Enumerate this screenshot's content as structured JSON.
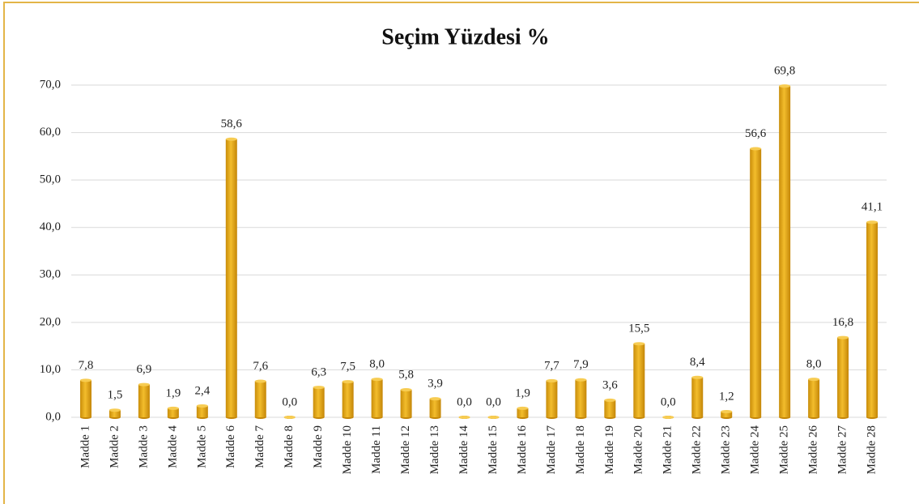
{
  "chart_data": {
    "type": "bar",
    "title": "Seçim Yüzdesi %",
    "categories": [
      "Madde 1",
      "Madde 2",
      "Madde 3",
      "Madde 4",
      "Madde 5",
      "Madde 6",
      "Madde 7",
      "Madde 8",
      "Madde 9",
      "Madde 10",
      "Madde 11",
      "Madde 12",
      "Madde 13",
      "Madde 14",
      "Madde 15",
      "Madde 16",
      "Madde 17",
      "Madde 18",
      "Madde 19",
      "Madde 20",
      "Madde 21",
      "Madde 22",
      "Madde 23",
      "Madde 24",
      "Madde 25",
      "Madde 26",
      "Madde 27",
      "Madde 28"
    ],
    "values": [
      7.8,
      1.5,
      6.9,
      1.9,
      2.4,
      58.6,
      7.6,
      0.0,
      6.3,
      7.5,
      8.0,
      5.8,
      3.9,
      0.0,
      0.0,
      1.9,
      7.7,
      7.9,
      3.6,
      15.5,
      0.0,
      8.4,
      1.2,
      56.6,
      69.8,
      8.0,
      16.8,
      41.1
    ],
    "value_labels": [
      "7,8",
      "1,5",
      "6,9",
      "1,9",
      "2,4",
      "58,6",
      "7,6",
      "0,0",
      "6,3",
      "7,5",
      "8,0",
      "5,8",
      "3,9",
      "0,0",
      "0,0",
      "1,9",
      "7,7",
      "7,9",
      "3,6",
      "15,5",
      "0,0",
      "8,4",
      "1,2",
      "56,6",
      "69,8",
      "8,0",
      "16,8",
      "41,1"
    ],
    "color": "#e8a815",
    "ylim": [
      0,
      70
    ],
    "yticks": [
      {
        "value": 0,
        "label": "0,0"
      },
      {
        "value": 10,
        "label": "10,0"
      },
      {
        "value": 20,
        "label": "20,0"
      },
      {
        "value": 30,
        "label": "30,0"
      },
      {
        "value": 40,
        "label": "40,0"
      },
      {
        "value": 50,
        "label": "50,0"
      },
      {
        "value": 60,
        "label": "60,0"
      },
      {
        "value": 70,
        "label": "70,0"
      }
    ],
    "grid": true
  }
}
